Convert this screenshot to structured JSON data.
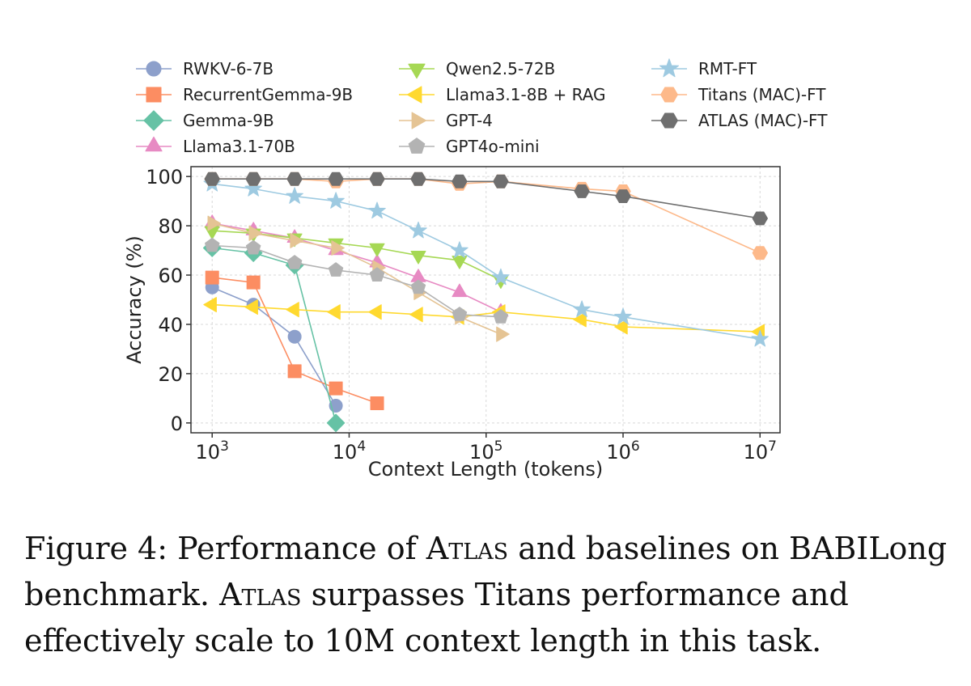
{
  "chart_data": {
    "type": "line",
    "xscale": "log",
    "title": "",
    "xlabel": "Context Length (tokens)",
    "ylabel": "Accuracy (%)",
    "xlim": [
      700,
      14000000
    ],
    "ylim": [
      -4,
      104
    ],
    "yticks": [
      0,
      20,
      40,
      60,
      80,
      100
    ],
    "xticks": [
      {
        "value": 1000,
        "base": "10",
        "exp": "3"
      },
      {
        "value": 10000,
        "base": "10",
        "exp": "4"
      },
      {
        "value": 100000,
        "base": "10",
        "exp": "5"
      },
      {
        "value": 1000000,
        "base": "10",
        "exp": "6"
      },
      {
        "value": 10000000,
        "base": "10",
        "exp": "7"
      }
    ],
    "grid": true,
    "legend": "top",
    "series": [
      {
        "name": "RWKV-6-7B",
        "color": "#8da0cb",
        "marker": "circle",
        "x": [
          1000,
          2000,
          4000,
          8000
        ],
        "y": [
          55,
          48,
          35,
          7
        ]
      },
      {
        "name": "RecurrentGemma-9B",
        "color": "#fc8d62",
        "marker": "square",
        "x": [
          1000,
          2000,
          4000,
          8000,
          16000
        ],
        "y": [
          59,
          57,
          21,
          14,
          8
        ]
      },
      {
        "name": "Gemma-9B",
        "color": "#66c2a5",
        "marker": "diamond",
        "x": [
          1000,
          2000,
          4000,
          8000
        ],
        "y": [
          71,
          69,
          64,
          0
        ]
      },
      {
        "name": "Llama3.1-70B",
        "color": "#e78ac3",
        "marker": "triangle-up",
        "x": [
          1000,
          2000,
          4000,
          8000,
          16000,
          32000,
          64000,
          128000
        ],
        "y": [
          81,
          78,
          75,
          70,
          65,
          59,
          53,
          45
        ]
      },
      {
        "name": "Qwen2.5-72B",
        "color": "#a6d854",
        "marker": "triangle-down",
        "x": [
          1000,
          2000,
          4000,
          8000,
          16000,
          32000,
          64000,
          128000
        ],
        "y": [
          78,
          77,
          75,
          73,
          71,
          68,
          66,
          58
        ]
      },
      {
        "name": "Llama3.1-8B + RAG",
        "color": "#ffd92f",
        "marker": "triangle-left",
        "x": [
          1000,
          2000,
          4000,
          8000,
          16000,
          32000,
          64000,
          128000,
          500000,
          1000000,
          10000000
        ],
        "y": [
          48,
          47,
          46,
          45,
          45,
          44,
          43,
          45,
          42,
          39,
          37
        ]
      },
      {
        "name": "GPT-4",
        "color": "#e5c494",
        "marker": "triangle-right",
        "x": [
          1000,
          2000,
          4000,
          8000,
          16000,
          32000,
          64000,
          128000
        ],
        "y": [
          81,
          77,
          74,
          71,
          63,
          53,
          43,
          36
        ]
      },
      {
        "name": "GPT4o-mini",
        "color": "#b3b3b3",
        "marker": "pentagon",
        "x": [
          1000,
          2000,
          4000,
          8000,
          16000,
          32000,
          64000,
          128000
        ],
        "y": [
          72,
          71,
          65,
          62,
          60,
          55,
          44,
          43
        ]
      },
      {
        "name": "RMT-FT",
        "color": "#9ecae1",
        "marker": "star",
        "x": [
          1000,
          2000,
          4000,
          8000,
          16000,
          32000,
          64000,
          128000,
          500000,
          1000000,
          10000000
        ],
        "y": [
          97,
          95,
          92,
          90,
          86,
          78,
          70,
          59,
          46,
          43,
          34
        ]
      },
      {
        "name": "Titans (MAC)-FT",
        "color": "#fdb98a",
        "marker": "hexagon",
        "x": [
          1000,
          2000,
          4000,
          8000,
          16000,
          32000,
          64000,
          128000,
          500000,
          1000000,
          10000000
        ],
        "y": [
          99,
          99,
          99,
          98,
          99,
          99,
          97,
          98,
          95,
          94,
          69
        ]
      },
      {
        "name": "ATLAS (MAC)-FT",
        "color": "#6f6f6f",
        "marker": "hexagon",
        "x": [
          1000,
          2000,
          4000,
          8000,
          16000,
          32000,
          64000,
          128000,
          500000,
          1000000,
          10000000
        ],
        "y": [
          99,
          99,
          99,
          99,
          99,
          99,
          98,
          98,
          94,
          92,
          83
        ]
      }
    ]
  },
  "caption": {
    "prefix": "Figure 4: Performance of ",
    "model": "Atlas",
    "middle": " and baselines on BABILong benchmark. ",
    "model2": "Atlas",
    "suffix": " surpasses Titans performance and effectively scale to 10M context length in this task."
  }
}
